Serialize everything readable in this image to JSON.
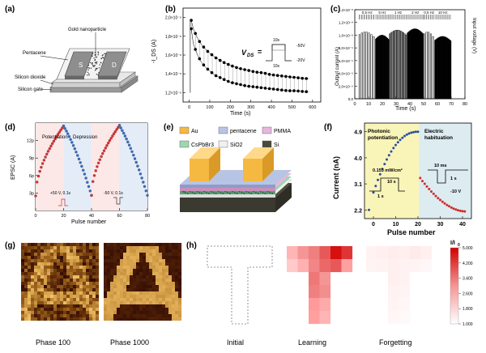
{
  "panels": {
    "a": {
      "label": "(a)",
      "labels": [
        "Gold nanoparticle",
        "Pentacene",
        "Silicon dioxide",
        "Silicon gate"
      ],
      "electrodes": [
        "S",
        "D"
      ]
    },
    "b": {
      "label": "(b)",
      "ylabel": "-I_DS (A)",
      "xlabel": "Time (s)",
      "yticks": [
        "2,0×10⁻⁸",
        "1,8×10⁻⁸",
        "1,6×10⁻⁸",
        "1,4×10⁻⁸",
        "1,2×10⁻⁸"
      ],
      "xticks": [
        "0",
        "100",
        "200",
        "300",
        "400",
        "500",
        "600"
      ],
      "vds_label": "V",
      "vds_sub": "DS",
      "pulse_labels": [
        "10s",
        "10s",
        "-50V",
        "-20V"
      ]
    },
    "c": {
      "label": "(c)",
      "ylabel_left": "Output current (A)",
      "ylabel_right": "Input voltage (V)",
      "xlabel": "Time (s)",
      "yticks": [
        "1,4×10⁻⁸",
        "1,2×10⁻⁸",
        "1,0×10⁻⁸",
        "8,0×10⁻⁹",
        "6,0×10⁻⁹",
        "4,0×10⁻⁹",
        "2,0×10⁻⁹",
        "0,0"
      ],
      "xticks": [
        "0",
        "10",
        "20",
        "30",
        "40",
        "50",
        "60",
        "70",
        "80"
      ],
      "freq_labels": [
        "0,5 Hz",
        "5 Hz",
        "1 Hz",
        "2 Hz",
        "0,5 Hz",
        "10 Hz"
      ]
    },
    "d": {
      "label": "(d)",
      "ylabel": "EPSC (A)",
      "xlabel": "Pulse number",
      "yticks": [
        "3p",
        "6p",
        "9p",
        "12p"
      ],
      "xticks": [
        "0",
        "20",
        "40",
        "60",
        "80"
      ],
      "potentiation": "Potentiation",
      "depression": "Depression",
      "pos_pulse": "+50 V, 0.1s",
      "neg_pulse": "-50 V, 0.1s"
    },
    "e": {
      "label": "(e)",
      "legend": [
        "Au",
        "pentacene",
        "PMMA",
        "CsPbBr3",
        "SiO2",
        "Si"
      ],
      "colors": {
        "Au": "#f5b942",
        "pentacene": "#b8c4e4",
        "PMMA": "#e7b6dc",
        "CsPbBr3": "#9ed6b0",
        "SiO2": "#f0f0f0",
        "Si": "#4a4a3a"
      }
    },
    "f": {
      "label": "(f)",
      "ylabel": "Current (nA)",
      "xlabel": "Pulse number",
      "yticks": [
        "2.2",
        "3.1",
        "4.0",
        "4.9"
      ],
      "xticks": [
        "0",
        "10",
        "20",
        "30",
        "40"
      ],
      "photonic": [
        "Photonic",
        "potentiation"
      ],
      "electric": [
        "Electric",
        "habituation"
      ],
      "light_pulse": "0.153 mW/cm²",
      "light_on": "10 s",
      "light_off": "1 s",
      "elec_on": "10 ms",
      "elec_off": "1 s",
      "elec_v": "-10 V"
    },
    "g": {
      "label": "(g)",
      "captions": [
        "Phase 100",
        "Phase 1000"
      ]
    },
    "h": {
      "label": "(h)",
      "captions": [
        "Initial",
        "Learning",
        "Forgetting"
      ],
      "colorbar_title": "I/I",
      "colorbar_title_sub": "0",
      "colorbar_ticks": [
        "5.000",
        "4.200",
        "3.400",
        "2.600",
        "1.800",
        "1.000"
      ]
    }
  },
  "chart_data": [
    {
      "type": "scatter",
      "panel": "b",
      "xlabel": "Time (s)",
      "ylabel": "-I_DS (A)",
      "xlim": [
        -30,
        640
      ],
      "ylim": [
        1.1e-08,
        2.1e-08
      ],
      "series": [
        {
          "name": "-50V",
          "x": [
            10,
            20,
            40,
            60,
            80,
            100,
            130,
            160,
            200,
            240,
            280,
            320,
            360,
            400,
            440,
            480,
            520,
            560,
            580
          ],
          "y": [
            1.97e-08,
            1.88e-08,
            1.78e-08,
            1.71e-08,
            1.66e-08,
            1.62e-08,
            1.57e-08,
            1.53e-08,
            1.49e-08,
            1.46e-08,
            1.44e-08,
            1.42e-08,
            1.41e-08,
            1.39e-08,
            1.38e-08,
            1.37e-08,
            1.36e-08,
            1.35e-08,
            1.35e-08
          ]
        },
        {
          "name": "-20V",
          "x": [
            10,
            20,
            40,
            60,
            80,
            100,
            130,
            160,
            200,
            240,
            280,
            320,
            360,
            400,
            440,
            480,
            520,
            560,
            580
          ],
          "y": [
            1.88e-08,
            1.72e-08,
            1.6e-08,
            1.52e-08,
            1.47e-08,
            1.43e-08,
            1.38e-08,
            1.35e-08,
            1.31e-08,
            1.29e-08,
            1.27e-08,
            1.26e-08,
            1.25e-08,
            1.24e-08,
            1.23e-08,
            1.22e-08,
            1.22e-08,
            1.21e-08,
            1.21e-08
          ]
        }
      ]
    },
    {
      "type": "line",
      "panel": "c",
      "xlabel": "Time (s)",
      "ylabel": "Output current (A)",
      "xlim": [
        0,
        80
      ],
      "ylim": [
        0,
        1.4e-08
      ],
      "segments": [
        {
          "freq": "0,5 Hz",
          "x0": 3,
          "x1": 15,
          "pulses": 7,
          "level": 1.05e-08
        },
        {
          "freq": "5 Hz",
          "x0": 15,
          "x1": 25,
          "pulses": 22,
          "level": 1e-08
        },
        {
          "freq": "1 Hz",
          "x0": 25,
          "x1": 38,
          "pulses": 14,
          "level": 1.08e-08
        },
        {
          "freq": "2 Hz",
          "x0": 38,
          "x1": 50,
          "pulses": 20,
          "level": 1.1e-08
        },
        {
          "freq": "0,5 Hz",
          "x0": 50,
          "x1": 58,
          "pulses": 5,
          "level": 1.05e-08
        },
        {
          "freq": "10 Hz",
          "x0": 58,
          "x1": 70,
          "pulses": 28,
          "level": 9.8e-09
        }
      ]
    },
    {
      "type": "scatter",
      "panel": "d",
      "xlabel": "Pulse number",
      "ylabel": "EPSC (A)",
      "xlim": [
        0,
        80
      ],
      "ylim": [
        0,
        15
      ],
      "series": [
        {
          "name": "Potentiation",
          "x_start": 0,
          "x_end": 20,
          "y_start": 2.5,
          "y_end": 14.5
        },
        {
          "name": "Depression",
          "x_start": 20,
          "x_end": 40,
          "y_start": 14.5,
          "y_end": 2.6
        },
        {
          "name": "Potentiation",
          "x_start": 40,
          "x_end": 60,
          "y_start": 2.6,
          "y_end": 14.6
        },
        {
          "name": "Depression",
          "x_start": 60,
          "x_end": 80,
          "y_start": 14.6,
          "y_end": 2.6
        }
      ]
    },
    {
      "type": "scatter",
      "panel": "f",
      "xlabel": "Pulse number",
      "ylabel": "Current (nA)",
      "xlim": [
        -4,
        44
      ],
      "ylim": [
        1.9,
        5.2
      ],
      "series": [
        {
          "name": "Photonic potentiation",
          "x_start": 0,
          "x_end": 20,
          "y_start": 2.8,
          "y_end": 4.9
        },
        {
          "name": "Electric habituation",
          "x_start": 21,
          "x_end": 41,
          "y_start": 3.3,
          "y_end": 2.15
        }
      ]
    },
    {
      "type": "heatmap",
      "panel": "h",
      "title": "Learning",
      "color_range": [
        1.0,
        5.0
      ],
      "rows": [
        [
          2.4,
          3.0,
          3.3,
          3.8,
          4.8,
          4.3
        ],
        [
          2.0,
          2.5,
          3.2,
          3.6,
          3.8,
          2.8
        ],
        [
          null,
          null,
          3.4,
          3.0,
          null,
          null
        ],
        [
          null,
          null,
          3.3,
          3.1,
          null,
          null
        ],
        [
          null,
          null,
          2.9,
          2.6,
          null,
          null
        ],
        [
          null,
          null,
          2.8,
          2.4,
          null,
          null
        ]
      ]
    },
    {
      "type": "heatmap",
      "panel": "h",
      "title": "Forgetting",
      "color_range": [
        1.0,
        5.0
      ],
      "rows": [
        [
          1.25,
          1.3,
          1.35,
          1.3,
          1.4,
          1.3
        ],
        [
          1.2,
          1.25,
          1.3,
          1.25,
          1.2,
          1.15
        ],
        [
          null,
          null,
          1.3,
          1.25,
          null,
          null
        ],
        [
          null,
          null,
          1.25,
          1.2,
          null,
          null
        ],
        [
          null,
          null,
          1.2,
          1.15,
          null,
          null
        ],
        [
          null,
          null,
          1.15,
          1.1,
          null,
          null
        ]
      ]
    }
  ]
}
